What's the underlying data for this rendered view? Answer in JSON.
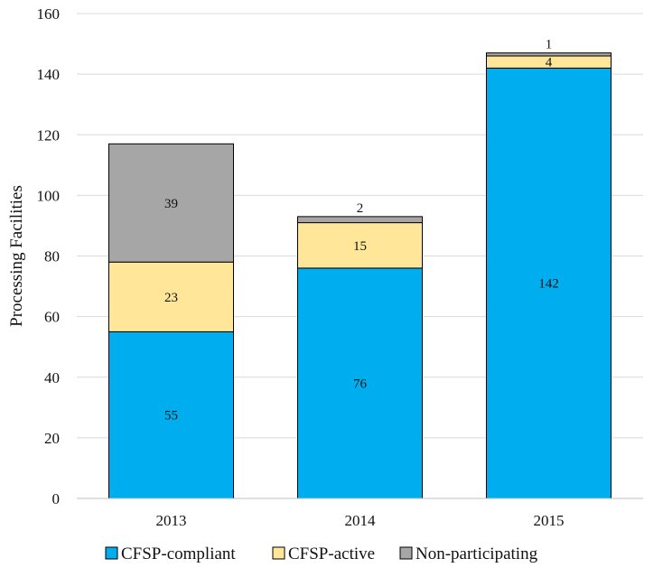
{
  "chart_data": {
    "type": "bar",
    "stacked": true,
    "title": "",
    "xlabel": "",
    "ylabel": "Processing Facilities",
    "ylim": [
      0,
      160
    ],
    "yticks": [
      0,
      20,
      40,
      60,
      80,
      100,
      120,
      140,
      160
    ],
    "grid": true,
    "legend_position": "bottom",
    "categories": [
      "2013",
      "2014",
      "2015"
    ],
    "series": [
      {
        "name": "CFSP-compliant",
        "color": "#00AEEF",
        "values": [
          55,
          76,
          142
        ]
      },
      {
        "name": "CFSP-active",
        "color": "#FFE699",
        "values": [
          23,
          15,
          4
        ]
      },
      {
        "name": "Non-participating",
        "color": "#A6A6A6",
        "values": [
          39,
          2,
          1
        ]
      }
    ]
  }
}
